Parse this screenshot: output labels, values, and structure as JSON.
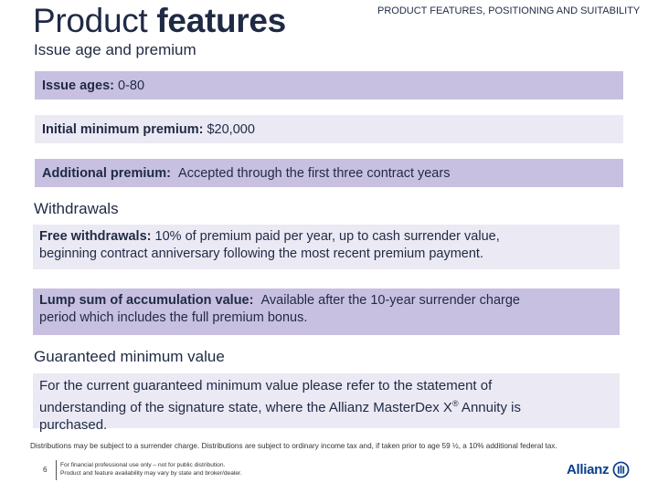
{
  "header": {
    "title_regular": "Product ",
    "title_bold": "features",
    "right_label": "PRODUCT FEATURES, POSITIONING AND SUITABILITY"
  },
  "sections": {
    "issue_age": {
      "title": "Issue age and premium",
      "rows": [
        {
          "key": "Issue ages:",
          "value": "0-80"
        },
        {
          "key": "Initial minimum premium:",
          "value": "$20,000"
        },
        {
          "key": "Additional premium:",
          "value": "Accepted through the first three contract years"
        }
      ]
    },
    "withdrawals": {
      "title": "Withdrawals",
      "rows": [
        {
          "key": "Free withdrawals:",
          "line1": "10% of premium paid per year, up to cash surrender value,",
          "line2": "beginning contract anniversary following the most recent premium payment."
        },
        {
          "key": "Lump sum of accumulation value:",
          "line1": "Available after the 10-year surrender charge",
          "line2": "period which includes the full premium bonus."
        }
      ]
    },
    "gmv": {
      "title": "Guaranteed minimum value",
      "line1": "For the current guaranteed minimum value please refer to the statement of",
      "line2_pre": "understanding of the signature state, where the Allianz Master",
      "line2_brand": "Dex X",
      "line2_reg": "®",
      "line2_post": " Annuity is",
      "line3": "purchased."
    }
  },
  "footer": {
    "footnote": "Distributions may be subject to a surrender charge. Distributions are subject to ordinary income tax and, if taken prior to age 59 ½, a 10% additional federal tax.",
    "page_number": "6",
    "disclaimer_line1": "For financial professional use only – not for public distribution.",
    "disclaimer_line2": "Product and feature availability may vary by state and broker/dealer.",
    "logo_text": "Allianz",
    "logo_icon": "allianz-eagle-icon",
    "logo_color": "#0a3f8a"
  },
  "colors": {
    "box_dark": "#c8c0e0",
    "box_light": "#ebe9f4",
    "text": "#1f2a44"
  }
}
